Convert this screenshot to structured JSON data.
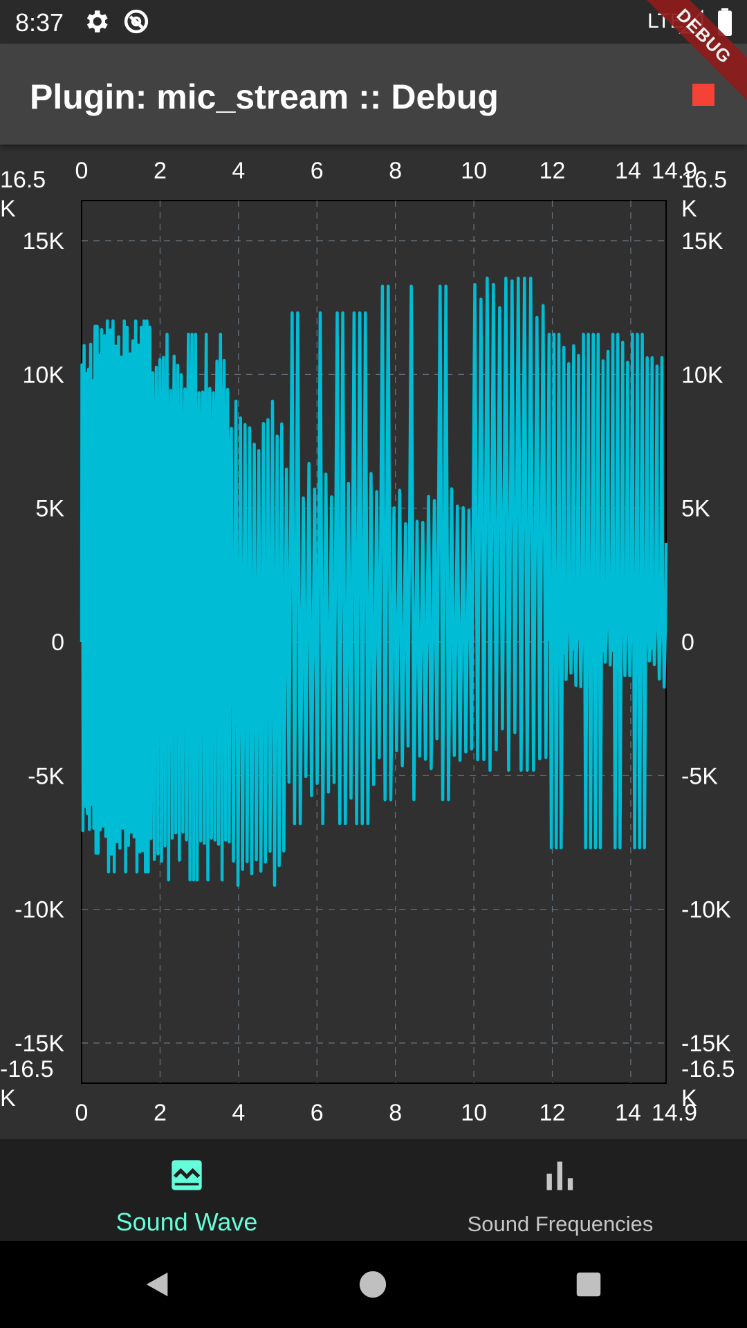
{
  "status_bar": {
    "time": "8:37",
    "network": "LTE",
    "icons": [
      "gear-icon",
      "sync-icon",
      "signal-icon",
      "battery-icon"
    ]
  },
  "debug_banner": "DEBUG",
  "app_bar": {
    "title": "Plugin: mic_stream :: Debug",
    "action_icon": "stop-icon",
    "action_color": "#f44336"
  },
  "chart_data": {
    "type": "line",
    "x_min": 0,
    "x_max": 14.9,
    "y_min": -16500,
    "y_max": 16500,
    "x_tick_labels": [
      "0",
      "2",
      "4",
      "6",
      "8",
      "10",
      "12",
      "14",
      "14.9"
    ],
    "y_tick_labels": [
      "16.5 K",
      "15K",
      "10K",
      "5K",
      "0",
      "-5K",
      "-10K",
      "-15K",
      "-16.5 K"
    ],
    "grid": true,
    "series": [
      {
        "color": "#00bcd4",
        "segments": [
          {
            "x0": 0.0,
            "x1": 0.5,
            "n": 9,
            "top": 11200,
            "bot": -7200,
            "a_top": 11800,
            "a_bot": -7900,
            "mid_top": 8500,
            "mid_bot": 4500
          },
          {
            "x0": 0.5,
            "x1": 1.8,
            "n": 18,
            "top": 11800,
            "bot": -8000,
            "a_top": 12000,
            "a_bot": -8600,
            "mid_top": 8000,
            "mid_bot": 4000
          },
          {
            "x0": 1.8,
            "x1": 3.8,
            "n": 22,
            "top": 10800,
            "bot": -8200,
            "a_top": 11500,
            "a_bot": -8900,
            "mid_top": 8500,
            "mid_bot": 4000
          },
          {
            "x0": 3.8,
            "x1": 5.2,
            "n": 12,
            "top": 8500,
            "bot": -8700,
            "a_top": 9000,
            "a_bot": -9100,
            "mid_top": 0,
            "mid_bot": 0
          },
          {
            "x0": 5.2,
            "x1": 7.5,
            "n": 16,
            "top": 6800,
            "bot": -6000,
            "a_top": 12300,
            "a_bot": -6800,
            "mid_top": 0,
            "mid_bot": 0
          },
          {
            "x0": 7.5,
            "x1": 10.0,
            "n": 17,
            "top": 5800,
            "bot": -4800,
            "a_top": 13300,
            "a_bot": -5900,
            "mid_top": 0,
            "mid_bot": 0
          },
          {
            "x0": 10.0,
            "x1": 11.9,
            "n": 12,
            "top": 13500,
            "bot": -4400,
            "a_top": 13600,
            "a_bot": -4800,
            "mid_top": 0,
            "mid_bot": 0
          },
          {
            "x0": 11.9,
            "x1": 14.9,
            "n": 24,
            "top": 11200,
            "bot": -1800,
            "a_top": 11500,
            "a_bot": -7700,
            "mid_top": 1500,
            "mid_bot": -500
          }
        ]
      }
    ]
  },
  "bottom_nav": {
    "items": [
      {
        "label": "Sound Wave",
        "icon": "waveform-icon",
        "active": true
      },
      {
        "label": "Sound Frequencies",
        "icon": "bar-chart-icon",
        "active": false
      }
    ],
    "active_color": "#64ffda"
  },
  "system_nav": [
    "back-icon",
    "home-icon",
    "recents-icon"
  ]
}
